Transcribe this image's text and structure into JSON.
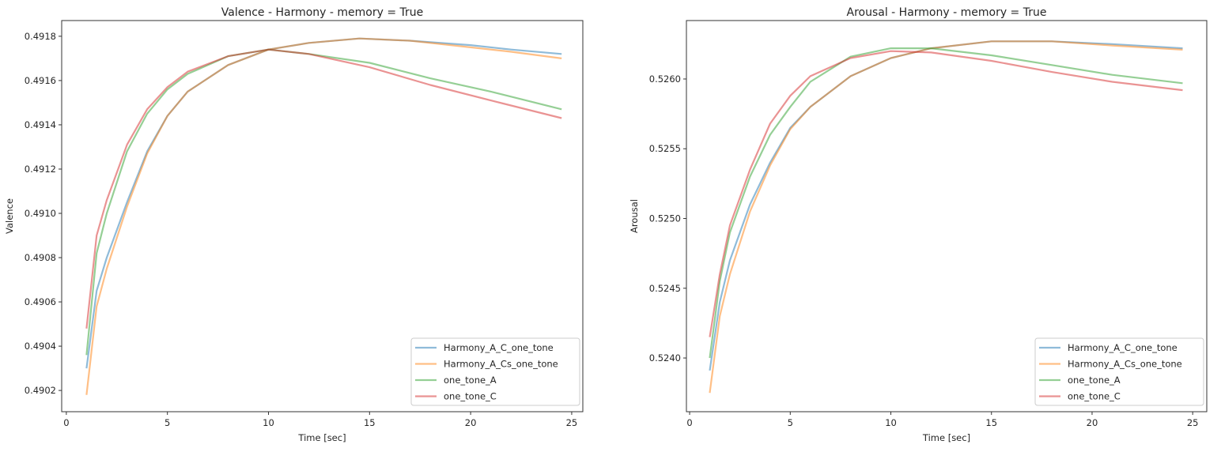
{
  "chart_data": [
    {
      "type": "line",
      "title": "Valence - Harmony - memory = True",
      "xlabel": "Time [sec]",
      "ylabel": "Valence",
      "xlim": [
        -0.23,
        25.55
      ],
      "ylim": [
        0.490104,
        0.491871
      ],
      "xticks": [
        0,
        5,
        10,
        15,
        20,
        25
      ],
      "yticks": [
        0.4902,
        0.4904,
        0.4906,
        0.4908,
        0.491,
        0.4912,
        0.4914,
        0.4916,
        0.4918
      ],
      "ytick_labels": [
        "0.4902",
        "0.4904",
        "0.4906",
        "0.4908",
        "0.4910",
        "0.4912",
        "0.4914",
        "0.4916",
        "0.4918"
      ],
      "grid": false,
      "legend_position": "lower-right",
      "series": [
        {
          "name": "Harmony_A_C_one_tone",
          "color": "#1f77b4",
          "x": [
            1,
            1.5,
            2,
            3,
            4,
            5,
            6,
            8,
            10,
            12,
            14.5,
            17,
            20,
            22,
            24.5
          ],
          "y": [
            0.4903,
            0.49065,
            0.4908,
            0.49105,
            0.49128,
            0.49144,
            0.49155,
            0.49167,
            0.49174,
            0.49177,
            0.49179,
            0.49178,
            0.49176,
            0.49174,
            0.49172
          ]
        },
        {
          "name": "Harmony_A_Cs_one_tone",
          "color": "#ff7f0e",
          "x": [
            1,
            1.5,
            2,
            3,
            4,
            5,
            6,
            8,
            10,
            12,
            14.5,
            17,
            20,
            22,
            24.5
          ],
          "y": [
            0.49018,
            0.49058,
            0.49075,
            0.49103,
            0.49127,
            0.49144,
            0.49155,
            0.49167,
            0.49174,
            0.49177,
            0.49179,
            0.49178,
            0.49175,
            0.49173,
            0.4917
          ]
        },
        {
          "name": "one_tone_A",
          "color": "#2ca02c",
          "x": [
            1,
            1.5,
            2,
            3,
            4,
            5,
            6,
            8,
            10,
            12,
            15,
            18,
            21,
            24.5
          ],
          "y": [
            0.49036,
            0.49082,
            0.491,
            0.49128,
            0.49145,
            0.49156,
            0.49163,
            0.49171,
            0.49174,
            0.49172,
            0.49168,
            0.49161,
            0.49155,
            0.49147
          ]
        },
        {
          "name": "one_tone_C",
          "color": "#d62728",
          "x": [
            1,
            1.5,
            2,
            3,
            4,
            5,
            6,
            8,
            10,
            12,
            15,
            18,
            21,
            24.5
          ],
          "y": [
            0.49048,
            0.4909,
            0.49106,
            0.49131,
            0.49147,
            0.49157,
            0.49164,
            0.49171,
            0.49174,
            0.49172,
            0.49166,
            0.49158,
            0.49151,
            0.49143
          ]
        }
      ]
    },
    {
      "type": "line",
      "title": "Arousal - Harmony - memory = True",
      "xlabel": "Time [sec]",
      "ylabel": "Arousal",
      "xlim": [
        -0.16,
        25.7
      ],
      "ylim": [
        0.523615,
        0.526419
      ],
      "xticks": [
        0,
        5,
        10,
        15,
        20,
        25
      ],
      "yticks": [
        0.524,
        0.5245,
        0.525,
        0.5255,
        0.526
      ],
      "ytick_labels": [
        "0.5240",
        "0.5245",
        "0.5250",
        "0.5255",
        "0.5260"
      ],
      "grid": false,
      "legend_position": "lower-right",
      "series": [
        {
          "name": "Harmony_A_C_one_tone",
          "color": "#1f77b4",
          "x": [
            1,
            1.5,
            2,
            3,
            4,
            5,
            6,
            8,
            10,
            12,
            15,
            18,
            21,
            24.5
          ],
          "y": [
            0.52391,
            0.5244,
            0.5247,
            0.5251,
            0.5254,
            0.52565,
            0.5258,
            0.52602,
            0.52615,
            0.52622,
            0.52627,
            0.52627,
            0.52625,
            0.52622
          ]
        },
        {
          "name": "Harmony_A_Cs_one_tone",
          "color": "#ff7f0e",
          "x": [
            1,
            1.5,
            2,
            3,
            4,
            5,
            6,
            8,
            10,
            12,
            15,
            18,
            21,
            24.5
          ],
          "y": [
            0.52375,
            0.5243,
            0.5246,
            0.52505,
            0.52538,
            0.52564,
            0.5258,
            0.52602,
            0.52615,
            0.52622,
            0.52627,
            0.52627,
            0.52624,
            0.52621
          ]
        },
        {
          "name": "one_tone_A",
          "color": "#2ca02c",
          "x": [
            1,
            1.5,
            2,
            3,
            4,
            5,
            6,
            8,
            10,
            12,
            15,
            18,
            21,
            24.5
          ],
          "y": [
            0.524,
            0.52455,
            0.5249,
            0.5253,
            0.5256,
            0.5258,
            0.52598,
            0.52616,
            0.52622,
            0.52622,
            0.52617,
            0.5261,
            0.52603,
            0.52597
          ]
        },
        {
          "name": "one_tone_C",
          "color": "#d62728",
          "x": [
            1,
            1.5,
            2,
            3,
            4,
            5,
            6,
            8,
            10,
            12,
            15,
            18,
            21,
            24.5
          ],
          "y": [
            0.52415,
            0.5246,
            0.52495,
            0.52535,
            0.52568,
            0.52588,
            0.52602,
            0.52615,
            0.5262,
            0.52619,
            0.52613,
            0.52605,
            0.52598,
            0.52592
          ]
        }
      ]
    }
  ]
}
